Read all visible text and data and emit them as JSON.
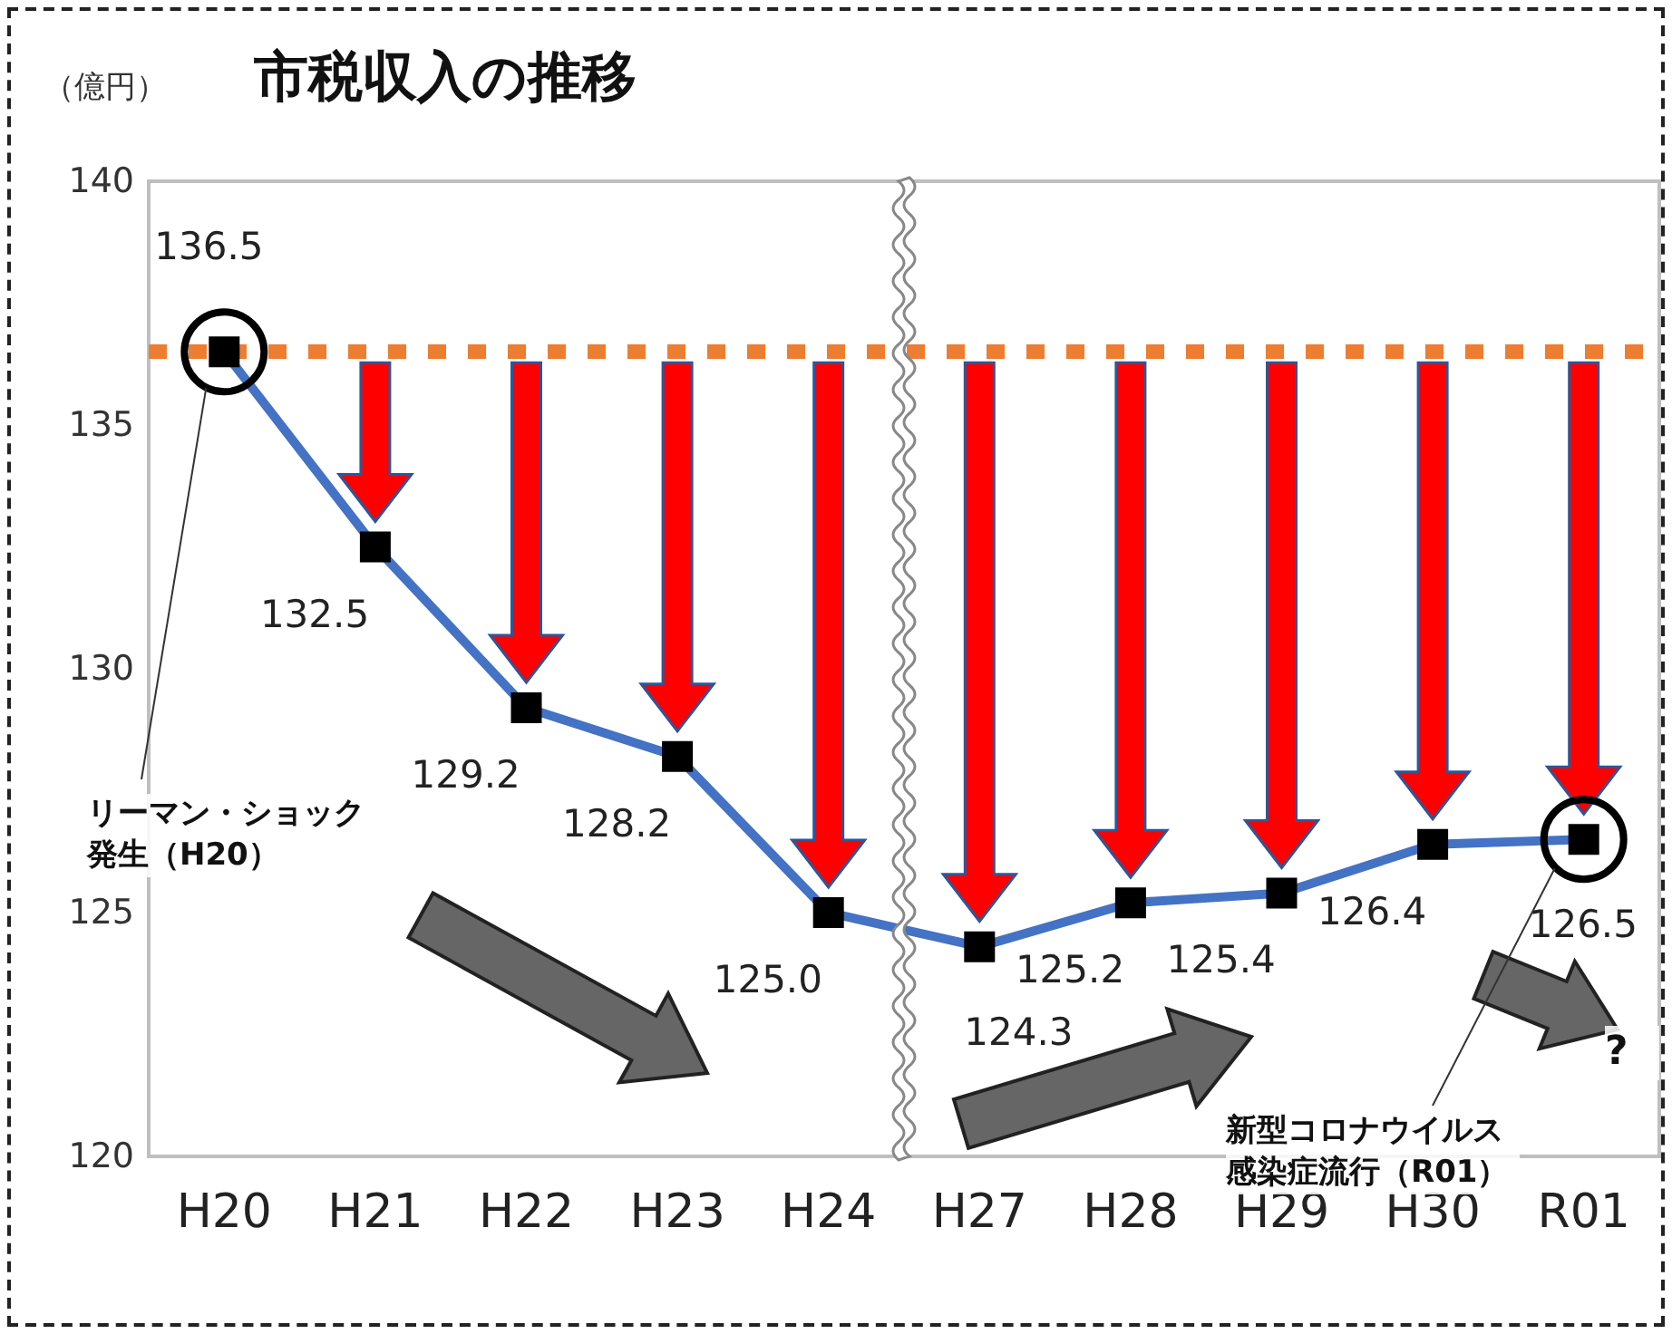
{
  "chart_data": {
    "type": "line",
    "title": "市税収入の推移",
    "ylabel": "（億円）",
    "categories": [
      "H20",
      "H21",
      "H22",
      "H23",
      "H24",
      "H27",
      "H28",
      "H29",
      "H30",
      "R01"
    ],
    "series": [
      {
        "color": "#4472c4",
        "values": [
          136.5,
          132.5,
          129.2,
          128.2,
          125.0,
          124.3,
          125.2,
          125.4,
          126.4,
          126.5
        ],
        "value_labels": [
          "136.5",
          "132.5",
          "129.2",
          "128.2",
          "125.0",
          "124.3",
          "125.2",
          "125.4",
          "126.4",
          "126.5"
        ]
      }
    ],
    "ylim": [
      120,
      140
    ],
    "yticks": [
      120,
      125,
      130,
      135,
      140
    ],
    "grid": false,
    "marker": "square",
    "line_style": "solid",
    "ref_lines": [
      {
        "axis": "y",
        "value": 136.5,
        "color": "#ed7d31",
        "line_style": "dotted"
      }
    ],
    "annotations": [
      "リーマン・ショック発生（H20）",
      "新型コロナウイルス感染症流行（R01）",
      "?"
    ]
  }
}
